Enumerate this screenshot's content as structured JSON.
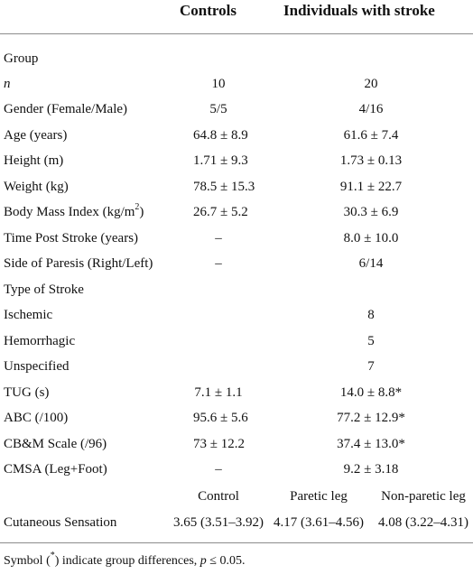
{
  "headers": {
    "controls": "Controls",
    "stroke": "Individuals with stroke"
  },
  "rows": [
    {
      "label": "Group",
      "controls": "",
      "stroke": ""
    },
    {
      "label": "n",
      "controls": "10",
      "stroke": "20"
    },
    {
      "label": "Gender (Female/Male)",
      "controls": "5/5",
      "stroke": "4/16"
    },
    {
      "label": "Age (years)",
      "controls": "64.8 ± 8.9",
      "stroke": "61.6 ± 7.4"
    },
    {
      "label": "Height (m)",
      "controls": "1.71 ± 9.3",
      "stroke": "1.73 ± 0.13"
    },
    {
      "label": "Weight (kg)",
      "controls": "78.5 ± 15.3",
      "stroke": "91.1 ± 22.7"
    },
    {
      "label": "Body Mass Index (kg/m",
      "label_sup": "2",
      "label_end": ")",
      "controls": "26.7 ± 5.2",
      "stroke": "30.3 ± 6.9"
    },
    {
      "label": "Time Post Stroke (years)",
      "controls": "–",
      "stroke": "8.0 ± 10.0"
    },
    {
      "label": "Side of Paresis (Right/Left)",
      "controls": "–",
      "stroke": "6/14"
    },
    {
      "label": "Type of Stroke",
      "controls": "",
      "stroke": ""
    },
    {
      "label": "Ischemic",
      "controls": "",
      "stroke": "8"
    },
    {
      "label": "Hemorrhagic",
      "controls": "",
      "stroke": "5"
    },
    {
      "label": "Unspecified",
      "controls": "",
      "stroke": "7"
    },
    {
      "label": "TUG (s)",
      "controls": "7.1 ± 1.1",
      "stroke": "14.0 ± 8.8*"
    },
    {
      "label": "ABC (/100)",
      "controls": "95.6 ± 5.6",
      "stroke": "77.2 ± 12.9*"
    },
    {
      "label": "CB&M Scale (/96)",
      "controls": "73 ± 12.2",
      "stroke": "37.4 ± 13.0*"
    },
    {
      "label": "CMSA (Leg+Foot)",
      "controls": "–",
      "stroke": "9.2 ± 3.18"
    }
  ],
  "sensation": {
    "subheaders": {
      "control": "Control",
      "paretic": "Paretic leg",
      "nonparetic": "Non-paretic leg"
    },
    "label": "Cutaneous Sensation",
    "control": "3.65 (3.51–3.92)",
    "paretic": "4.17 (3.61–4.56)",
    "nonparetic": "4.08 (3.22–4.31)"
  },
  "footnote": {
    "prefix": "Symbol (",
    "star": "*",
    "middle": ") indicate group differences, ",
    "p": "p",
    "suffix": " ≤ 0.05."
  }
}
